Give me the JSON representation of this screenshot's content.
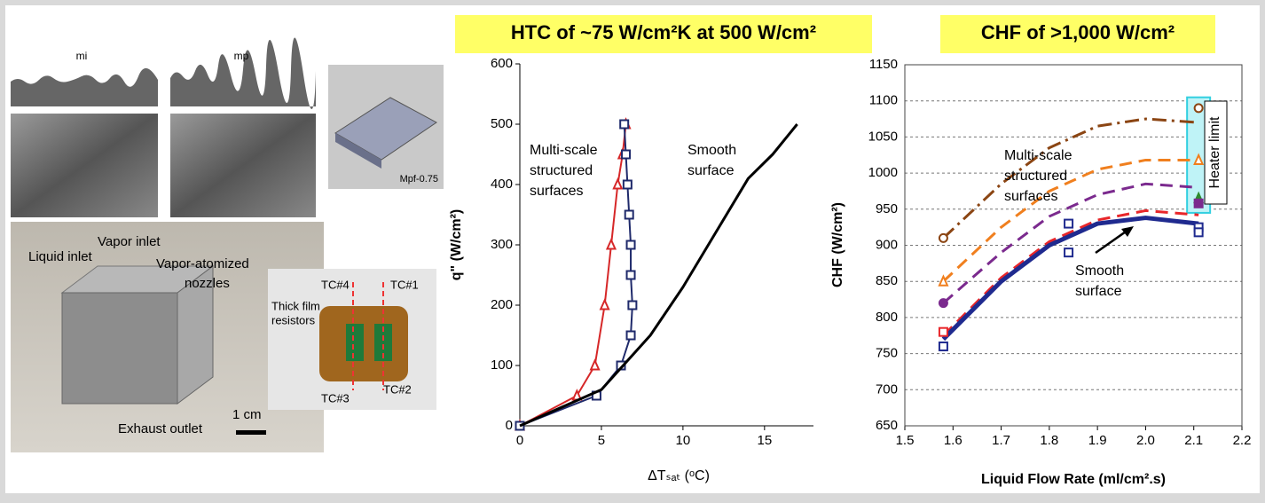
{
  "figures": {
    "profile_labels": [
      "mi",
      "mp"
    ],
    "grid_label": "Mpf-0.75",
    "device_labels": [
      "Liquid inlet",
      "Vapor inlet",
      "Vapor-atomized",
      "nozzles",
      "Exhaust outlet",
      "1 cm"
    ],
    "heater_labels": [
      "TC#4",
      "TC#1",
      "Thick film",
      "resistors",
      "TC#3",
      "TC#2"
    ]
  },
  "chart_data": [
    {
      "type": "line",
      "title": "HTC of ~75 W/cm²K at 500 W/cm²",
      "x_label": "ΔTₛₐₜ (ᵒC)",
      "y_label": "q\" (W/cm²)",
      "xlim": [
        0,
        18
      ],
      "xticks": [
        0,
        5,
        10,
        15
      ],
      "ylim": [
        0,
        600
      ],
      "yticks": [
        0,
        100,
        200,
        300,
        400,
        500,
        600
      ],
      "grid": false,
      "series": [
        {
          "color": "#d62728",
          "marker": "triangle",
          "width": 2,
          "x": [
            0,
            3.5,
            4.6,
            5.2,
            5.6,
            6.0,
            6.3,
            6.5
          ],
          "values": [
            0,
            50,
            100,
            200,
            300,
            400,
            450,
            500
          ]
        },
        {
          "color": "#1f2a6b",
          "marker": "square",
          "width": 2,
          "x": [
            0,
            4.7,
            6.2,
            6.8,
            6.9,
            6.8,
            6.8,
            6.7,
            6.6,
            6.5,
            6.4
          ],
          "values": [
            0,
            50,
            100,
            150,
            200,
            250,
            300,
            350,
            400,
            450,
            500
          ]
        },
        {
          "color": "#000000",
          "width": 3,
          "x": [
            0,
            5,
            8,
            10,
            12,
            14,
            15.5,
            17
          ],
          "values": [
            0,
            60,
            150,
            230,
            320,
            410,
            450,
            500
          ]
        }
      ],
      "annotations": [
        {
          "lines": [
            "Multi-scale",
            "structured",
            "surfaces"
          ]
        },
        {
          "lines": [
            "Smooth",
            "surface"
          ]
        }
      ]
    },
    {
      "type": "line",
      "title": "CHF of >1,000 W/cm²",
      "x_label": "Liquid Flow Rate (ml/cm².s)",
      "y_label": "CHF (W/cm²)",
      "xlim": [
        1.5,
        2.2
      ],
      "xticks": [
        1.5,
        1.6,
        1.7,
        1.8,
        1.9,
        {
          "value": 2,
          "label": "2.0"
        },
        2.1,
        2.2
      ],
      "ylim": [
        650,
        1150
      ],
      "yticks": [
        650,
        700,
        750,
        800,
        850,
        900,
        950,
        1000,
        1050,
        1100,
        1150
      ],
      "grid": true,
      "series": [
        {
          "color": "#8b4513",
          "dash": "dashdot",
          "width": 3,
          "x": [
            1.58,
            1.7,
            1.8,
            1.9,
            2.0,
            2.11
          ],
          "values": [
            910,
            985,
            1035,
            1065,
            1075,
            1070
          ]
        },
        {
          "color": "#f07f1e",
          "dash": "dash",
          "width": 3,
          "x": [
            1.58,
            1.7,
            1.8,
            1.9,
            2.0,
            2.11
          ],
          "values": [
            850,
            925,
            975,
            1005,
            1018,
            1018
          ]
        },
        {
          "color": "#7b2a8e",
          "dash": "dash",
          "width": 3,
          "x": [
            1.58,
            1.7,
            1.8,
            1.9,
            2.0,
            2.11
          ],
          "values": [
            820,
            890,
            940,
            970,
            985,
            980
          ]
        },
        {
          "color": "#e8262a",
          "dash": "dash",
          "width": 3,
          "x": [
            1.58,
            1.7,
            1.8,
            1.9,
            2.0,
            2.11
          ],
          "values": [
            775,
            855,
            905,
            935,
            948,
            942
          ]
        },
        {
          "color": "#1f2a8f",
          "width": 5,
          "x": [
            1.58,
            1.7,
            1.8,
            1.9,
            2.0,
            2.11
          ],
          "values": [
            770,
            850,
            900,
            930,
            938,
            930
          ]
        }
      ],
      "markers": [
        {
          "color": "#1f2a8f",
          "marker": "square",
          "x": [
            1.58,
            1.84,
            1.84,
            2.11,
            2.11
          ],
          "values": [
            760,
            930,
            890,
            925,
            918
          ]
        },
        {
          "color": "#e8262a",
          "marker": "square",
          "x": [
            1.58
          ],
          "values": [
            780
          ]
        },
        {
          "color": "#7b2a8e",
          "marker": "circle",
          "filled": true,
          "x": [
            1.58
          ],
          "values": [
            820
          ]
        },
        {
          "color": "#f07f1e",
          "marker": "triangle",
          "x": [
            1.58,
            2.11
          ],
          "values": [
            850,
            1018
          ]
        },
        {
          "color": "#8b4513",
          "marker": "circle",
          "x": [
            1.58,
            2.11
          ],
          "values": [
            910,
            1090
          ]
        },
        {
          "color": "#2e8b2e",
          "marker": "triangle",
          "filled": true,
          "x": [
            2.11
          ],
          "values": [
            965
          ]
        },
        {
          "color": "#7b2a8e",
          "marker": "square",
          "filled": true,
          "x": [
            2.11
          ],
          "values": [
            958
          ]
        }
      ],
      "annotations": [
        {
          "lines": [
            "Multi-scale",
            "structured",
            "surfaces"
          ]
        },
        {
          "lines": [
            "Smooth",
            "surface"
          ]
        },
        {
          "lines": [
            "Heater limit"
          ]
        }
      ]
    }
  ]
}
